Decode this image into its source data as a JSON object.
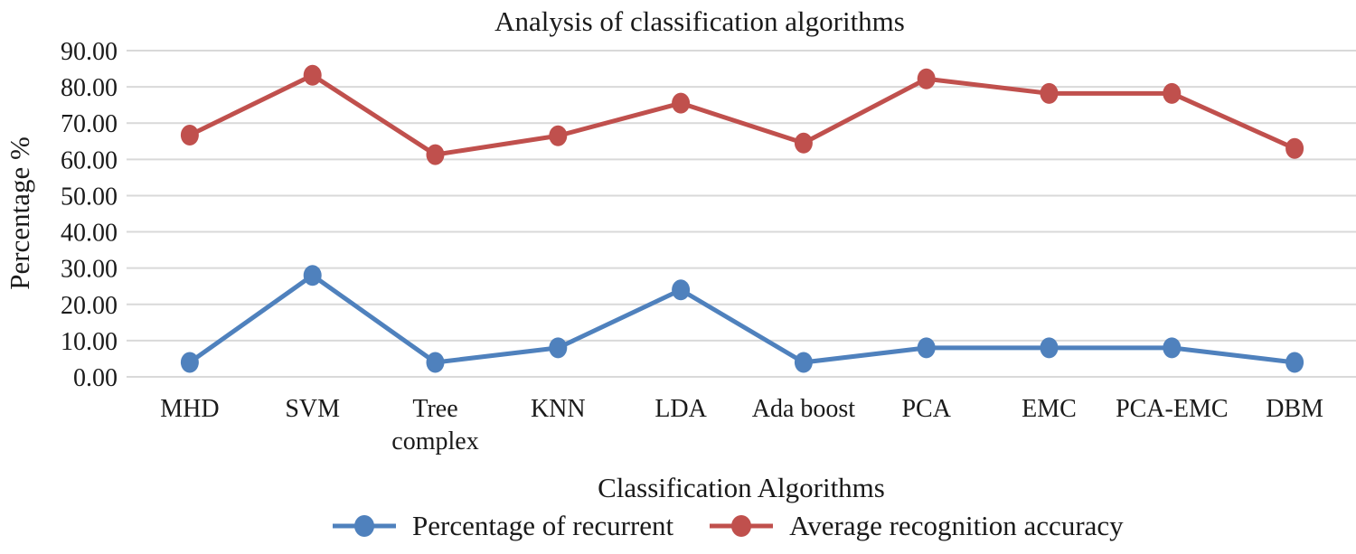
{
  "chart_data": {
    "type": "line",
    "title": "Analysis of classification algorithms",
    "xlabel": "Classification Algorithms",
    "ylabel": "Percentage %",
    "ylim": [
      0,
      90
    ],
    "ytick_labels": [
      "0.00",
      "10.00",
      "20.00",
      "30.00",
      "40.00",
      "50.00",
      "60.00",
      "70.00",
      "80.00",
      "90.00"
    ],
    "grid": "horizontal",
    "gridline_color": "#d9d9d9",
    "legend_position": "bottom",
    "categories": [
      "MHD",
      "SVM",
      "Tree complex",
      "KNN",
      "LDA",
      "Ada boost",
      "PCA",
      "EMC",
      "PCA-EMC",
      "DBM"
    ],
    "xtick_lines": [
      [
        "MHD"
      ],
      [
        "SVM"
      ],
      [
        "Tree",
        "complex"
      ],
      [
        "KNN"
      ],
      [
        "LDA"
      ],
      [
        "Ada boost"
      ],
      [
        "PCA"
      ],
      [
        "EMC"
      ],
      [
        "PCA-EMC"
      ],
      [
        "DBM"
      ]
    ],
    "series": [
      {
        "name": "Percentage of recurrent",
        "color": "#4f81bd",
        "values": [
          4,
          28,
          4,
          8,
          24,
          4,
          8,
          8,
          8,
          4
        ]
      },
      {
        "name": "Average recognition accuracy",
        "color": "#c0504d",
        "values": [
          66.7,
          83.2,
          61.3,
          66.5,
          75.5,
          64.5,
          82.2,
          78.2,
          78.2,
          63.0
        ]
      }
    ]
  }
}
